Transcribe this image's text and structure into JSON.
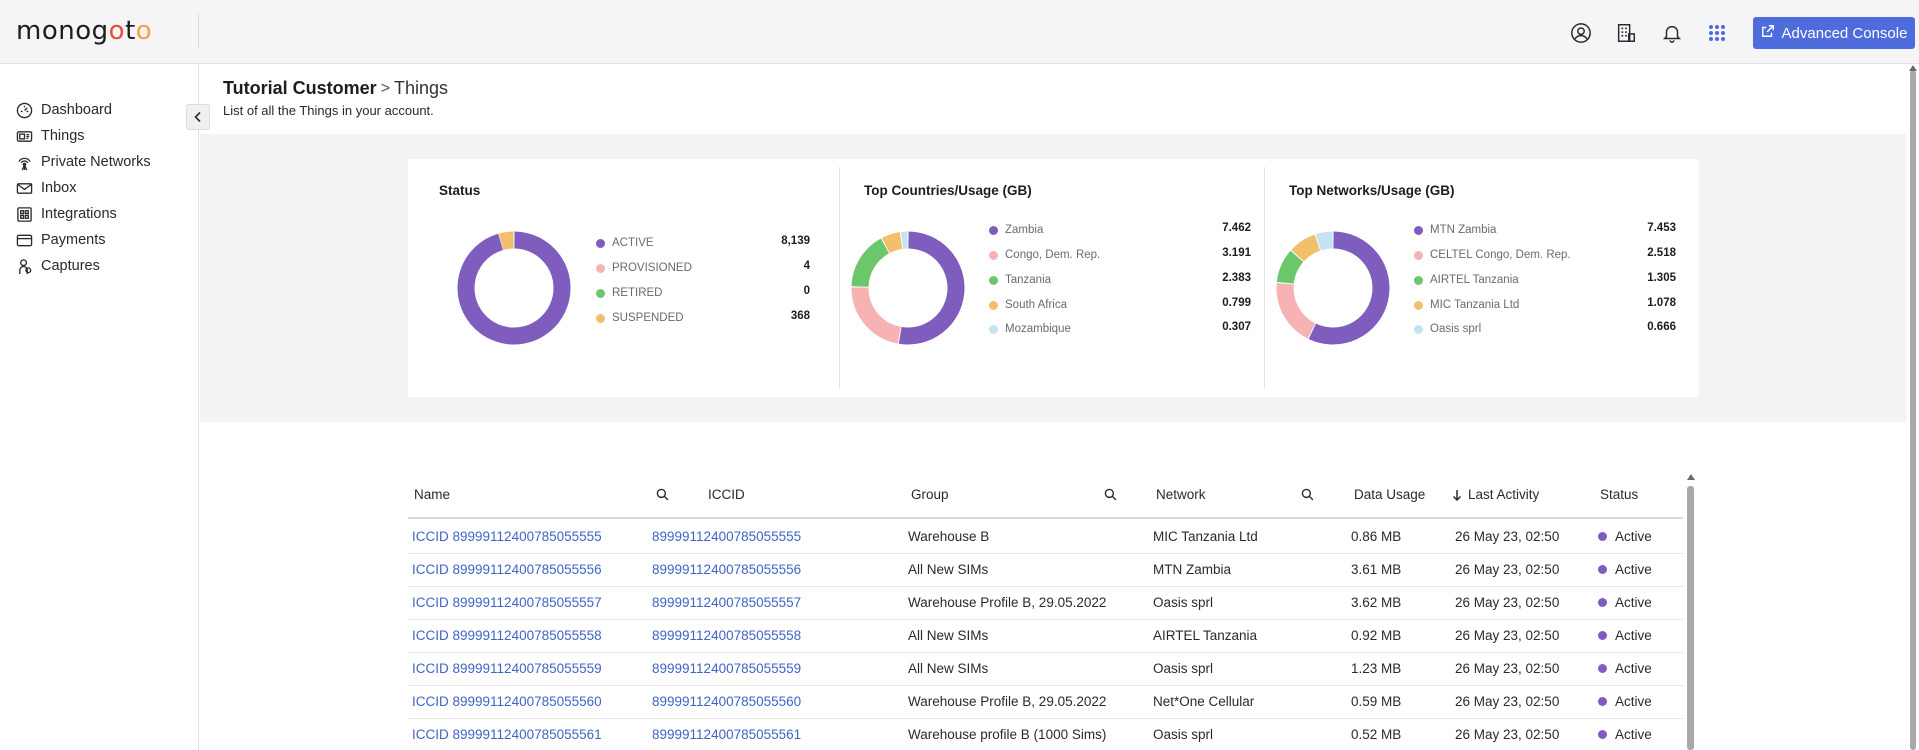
{
  "brand": {
    "logo_part1": "mon",
    "logo_o1": "o",
    "logo_part2": "g",
    "logo_o2": "o",
    "logo_part3": "t",
    "logo_o3": "o",
    "accent": "#4f6cdc",
    "purple": "#7e5dbe"
  },
  "topbar": {
    "icons": [
      "user-circle-icon",
      "building-icon",
      "bell-icon",
      "apps-grid-icon"
    ],
    "advanced_console_label": "Advanced Console"
  },
  "sidebar": {
    "items": [
      {
        "label": "Dashboard",
        "icon": "dashboard-icon"
      },
      {
        "label": "Things",
        "icon": "sim-card-icon"
      },
      {
        "label": "Private Networks",
        "icon": "antenna-icon"
      },
      {
        "label": "Inbox",
        "icon": "envelope-icon"
      },
      {
        "label": "Integrations",
        "icon": "integrations-icon"
      },
      {
        "label": "Payments",
        "icon": "credit-card-icon"
      },
      {
        "label": "Captures",
        "icon": "capture-icon"
      }
    ]
  },
  "header": {
    "customer": "Tutorial Customer",
    "separator": ">",
    "current": "Things",
    "subtitle": "List of all the Things in your account."
  },
  "stats": {
    "status": {
      "title": "Status",
      "items": [
        {
          "label": "ACTIVE",
          "value": "8,139",
          "num": 8139,
          "color": "#7e5dbe"
        },
        {
          "label": "PROVISIONED",
          "value": "4",
          "num": 4,
          "color": "#f7b3b3"
        },
        {
          "label": "RETIRED",
          "value": "0",
          "num": 0,
          "color": "#6cc76c"
        },
        {
          "label": "SUSPENDED",
          "value": "368",
          "num": 368,
          "color": "#f2c06a"
        }
      ]
    },
    "countries": {
      "title": "Top Countries/Usage (GB)",
      "items": [
        {
          "label": "Zambia",
          "value": "7.462",
          "num": 7.462,
          "color": "#7e5dbe"
        },
        {
          "label": "Congo, Dem. Rep.",
          "value": "3.191",
          "num": 3.191,
          "color": "#f7b3b3"
        },
        {
          "label": "Tanzania",
          "value": "2.383",
          "num": 2.383,
          "color": "#6cc76c"
        },
        {
          "label": "South Africa",
          "value": "0.799",
          "num": 0.799,
          "color": "#f2c06a"
        },
        {
          "label": "Mozambique",
          "value": "0.307",
          "num": 0.307,
          "color": "#c4e4f4"
        }
      ]
    },
    "networks": {
      "title": "Top Networks/Usage (GB)",
      "items": [
        {
          "label": "MTN Zambia",
          "value": "7.453",
          "num": 7.453,
          "color": "#7e5dbe"
        },
        {
          "label": "CELTEL Congo, Dem. Rep.",
          "value": "2.518",
          "num": 2.518,
          "color": "#f7b3b3"
        },
        {
          "label": "AIRTEL Tanzania",
          "value": "1.305",
          "num": 1.305,
          "color": "#6cc76c"
        },
        {
          "label": "MIC Tanzania Ltd",
          "value": "1.078",
          "num": 1.078,
          "color": "#f2c06a"
        },
        {
          "label": "Oasis sprl",
          "value": "0.666",
          "num": 0.666,
          "color": "#c4e4f4"
        }
      ]
    }
  },
  "table": {
    "columns": {
      "name": "Name",
      "iccid": "ICCID",
      "group": "Group",
      "network": "Network",
      "data_usage": "Data Usage",
      "last_activity": "Last Activity",
      "status": "Status"
    },
    "rows": [
      {
        "name": "ICCID 89999112400785055555",
        "iccid": "89999112400785055555",
        "group": "Warehouse B",
        "network": "MIC Tanzania Ltd",
        "usage": "0.86 MB",
        "last": "26 May 23, 02:50",
        "status": "Active"
      },
      {
        "name": "ICCID 89999112400785055556",
        "iccid": "89999112400785055556",
        "group": "All New SIMs",
        "network": "MTN Zambia",
        "usage": "3.61 MB",
        "last": "26 May 23, 02:50",
        "status": "Active"
      },
      {
        "name": "ICCID 89999112400785055557",
        "iccid": "89999112400785055557",
        "group": "Warehouse Profile B, 29.05.2022",
        "network": "Oasis sprl",
        "usage": "3.62 MB",
        "last": "26 May 23, 02:50",
        "status": "Active"
      },
      {
        "name": "ICCID 89999112400785055558",
        "iccid": "89999112400785055558",
        "group": "All New SIMs",
        "network": "AIRTEL Tanzania",
        "usage": "0.92 MB",
        "last": "26 May 23, 02:50",
        "status": "Active"
      },
      {
        "name": "ICCID 89999112400785055559",
        "iccid": "89999112400785055559",
        "group": "All New SIMs",
        "network": "Oasis sprl",
        "usage": "1.23 MB",
        "last": "26 May 23, 02:50",
        "status": "Active"
      },
      {
        "name": "ICCID 89999112400785055560",
        "iccid": "89999112400785055560",
        "group": "Warehouse Profile B, 29.05.2022",
        "network": "Net*One Cellular",
        "usage": "0.59 MB",
        "last": "26 May 23, 02:50",
        "status": "Active"
      },
      {
        "name": "ICCID 89999112400785055561",
        "iccid": "89999112400785055561",
        "group": "Warehouse profile B (1000 Sims)",
        "network": "Oasis sprl",
        "usage": "0.52 MB",
        "last": "26 May 23, 02:50",
        "status": "Active"
      }
    ]
  }
}
